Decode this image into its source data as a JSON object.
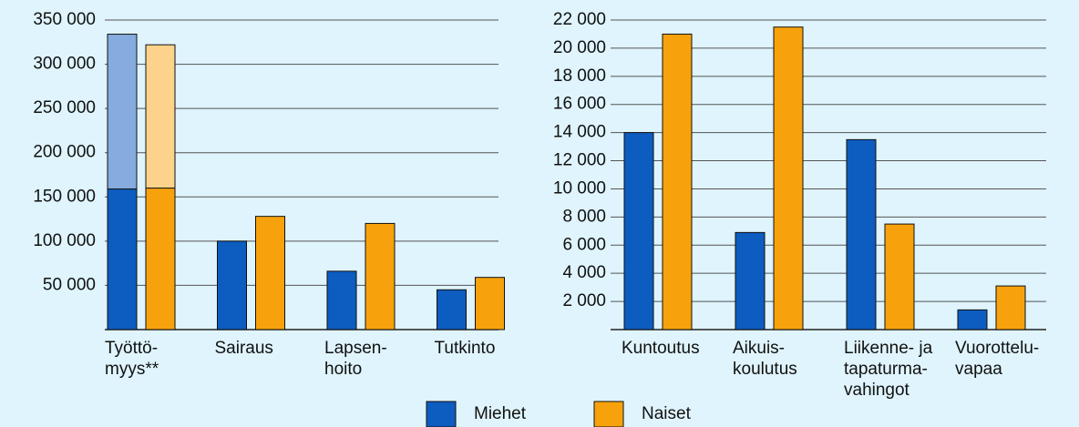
{
  "chart_data": [
    {
      "type": "bar",
      "categories": [
        [
          "Työttö-",
          "myys**"
        ],
        [
          "Sairaus"
        ],
        [
          "Lapsen-",
          "hoito"
        ],
        [
          "Tutkinto"
        ]
      ],
      "series": [
        {
          "name": "Miehet",
          "color": "#0d5cbf",
          "values": [
            159000,
            100000,
            66000,
            45000
          ],
          "stack_values": [
            175000,
            null,
            null,
            null
          ],
          "stack_color": "#86abde"
        },
        {
          "name": "Naiset",
          "color": "#f7a20c",
          "values": [
            160000,
            128000,
            120000,
            59000
          ],
          "stack_values": [
            162000,
            null,
            null,
            null
          ],
          "stack_color": "#fdd38c"
        }
      ],
      "ylim": [
        0,
        350000
      ],
      "yticks": [
        {
          "value": 50000,
          "label": "50 000"
        },
        {
          "value": 100000,
          "label": "100 000"
        },
        {
          "value": 150000,
          "label": "150 000"
        },
        {
          "value": 200000,
          "label": "200 000"
        },
        {
          "value": 250000,
          "label": "250 000"
        },
        {
          "value": 300000,
          "label": "300 000"
        },
        {
          "value": 350000,
          "label": "350 000"
        }
      ],
      "grid": true
    },
    {
      "type": "bar",
      "categories": [
        [
          "Kuntoutus"
        ],
        [
          "Aikuis-",
          "koulutus"
        ],
        [
          "Liikenne- ja",
          "tapaturma-",
          "vahingot"
        ],
        [
          "Vuorottelu-",
          "vapaa"
        ]
      ],
      "series": [
        {
          "color": "#0d5cbf",
          "values": [
            14000,
            6900,
            13500,
            1400
          ]
        },
        {
          "color": "#f7a20c",
          "values": [
            21000,
            21500,
            7500,
            3100
          ]
        }
      ],
      "ylim": [
        0,
        22000
      ],
      "yticks": [
        {
          "value": 2000,
          "label": "2 000"
        },
        {
          "value": 4000,
          "label": "4 000"
        },
        {
          "value": 6000,
          "label": "6 000"
        },
        {
          "value": 8000,
          "label": "8 000"
        },
        {
          "value": 10000,
          "label": "10 000"
        },
        {
          "value": 12000,
          "label": "12 000"
        },
        {
          "value": 14000,
          "label": "14 000"
        },
        {
          "value": 16000,
          "label": "16 000"
        },
        {
          "value": 18000,
          "label": "18 000"
        },
        {
          "value": 20000,
          "label": "20 000"
        },
        {
          "value": 22000,
          "label": "22 000"
        }
      ],
      "grid": true
    }
  ]
}
